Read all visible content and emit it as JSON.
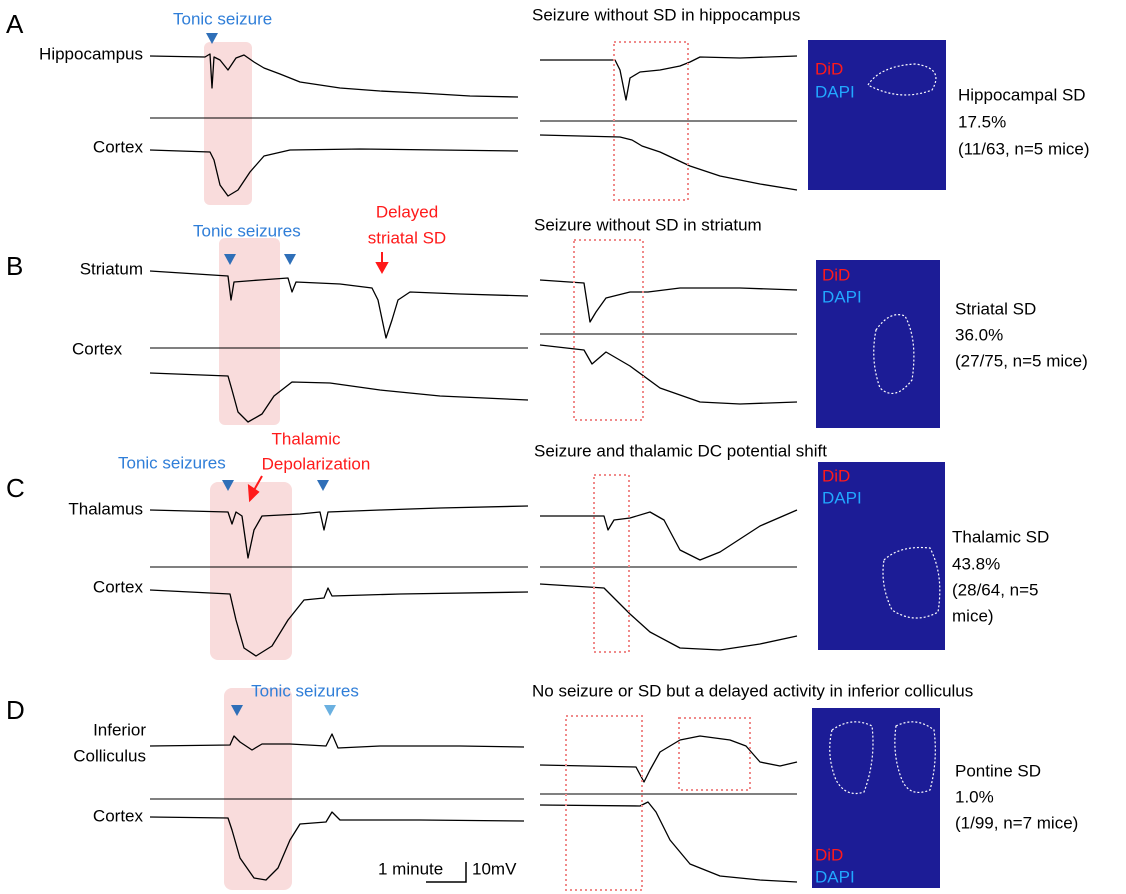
{
  "panels": [
    {
      "letter": "A",
      "region": [
        "Hippocampus"
      ],
      "cortex": "Cortex",
      "seizure_label": "Tonic seizure",
      "example_title": "Seizure without SD in hippocampus",
      "stain": [
        "DiD",
        "DAPI"
      ],
      "result": [
        "Hippocampal SD",
        "17.5%",
        "(11/63, n=5 mice)"
      ]
    },
    {
      "letter": "B",
      "region": [
        "Striatum"
      ],
      "cortex": "Cortex",
      "seizure_label": "Tonic seizures",
      "sd_label": [
        "Delayed",
        "striatal SD"
      ],
      "example_title": "Seizure without SD in striatum",
      "stain": [
        "DiD",
        "DAPI"
      ],
      "result": [
        "Striatal SD",
        "36.0%",
        "(27/75, n=5 mice)"
      ]
    },
    {
      "letter": "C",
      "region": [
        "Thalamus"
      ],
      "cortex": "Cortex",
      "seizure_label": "Tonic seizures",
      "sd_label": [
        "Thalamic",
        "Depolarization"
      ],
      "example_title": "Seizure and thalamic DC potential shift",
      "stain": [
        "DiD",
        "DAPI"
      ],
      "result": [
        "Thalamic SD",
        "43.8%",
        "(28/64, n=5",
        "mice)"
      ]
    },
    {
      "letter": "D",
      "region": [
        "Inferior",
        "Colliculus"
      ],
      "cortex": "Cortex",
      "seizure_label": "Tonic seizures",
      "example_title": "No seizure or SD but a delayed activity in inferior colliculus",
      "stain": [
        "DiD",
        "DAPI"
      ],
      "result": [
        "Pontine SD",
        "1.0%",
        "(1/99, n=7 mice)"
      ]
    }
  ],
  "scale_bar": {
    "time": "1 minute",
    "voltage": "10mV"
  }
}
